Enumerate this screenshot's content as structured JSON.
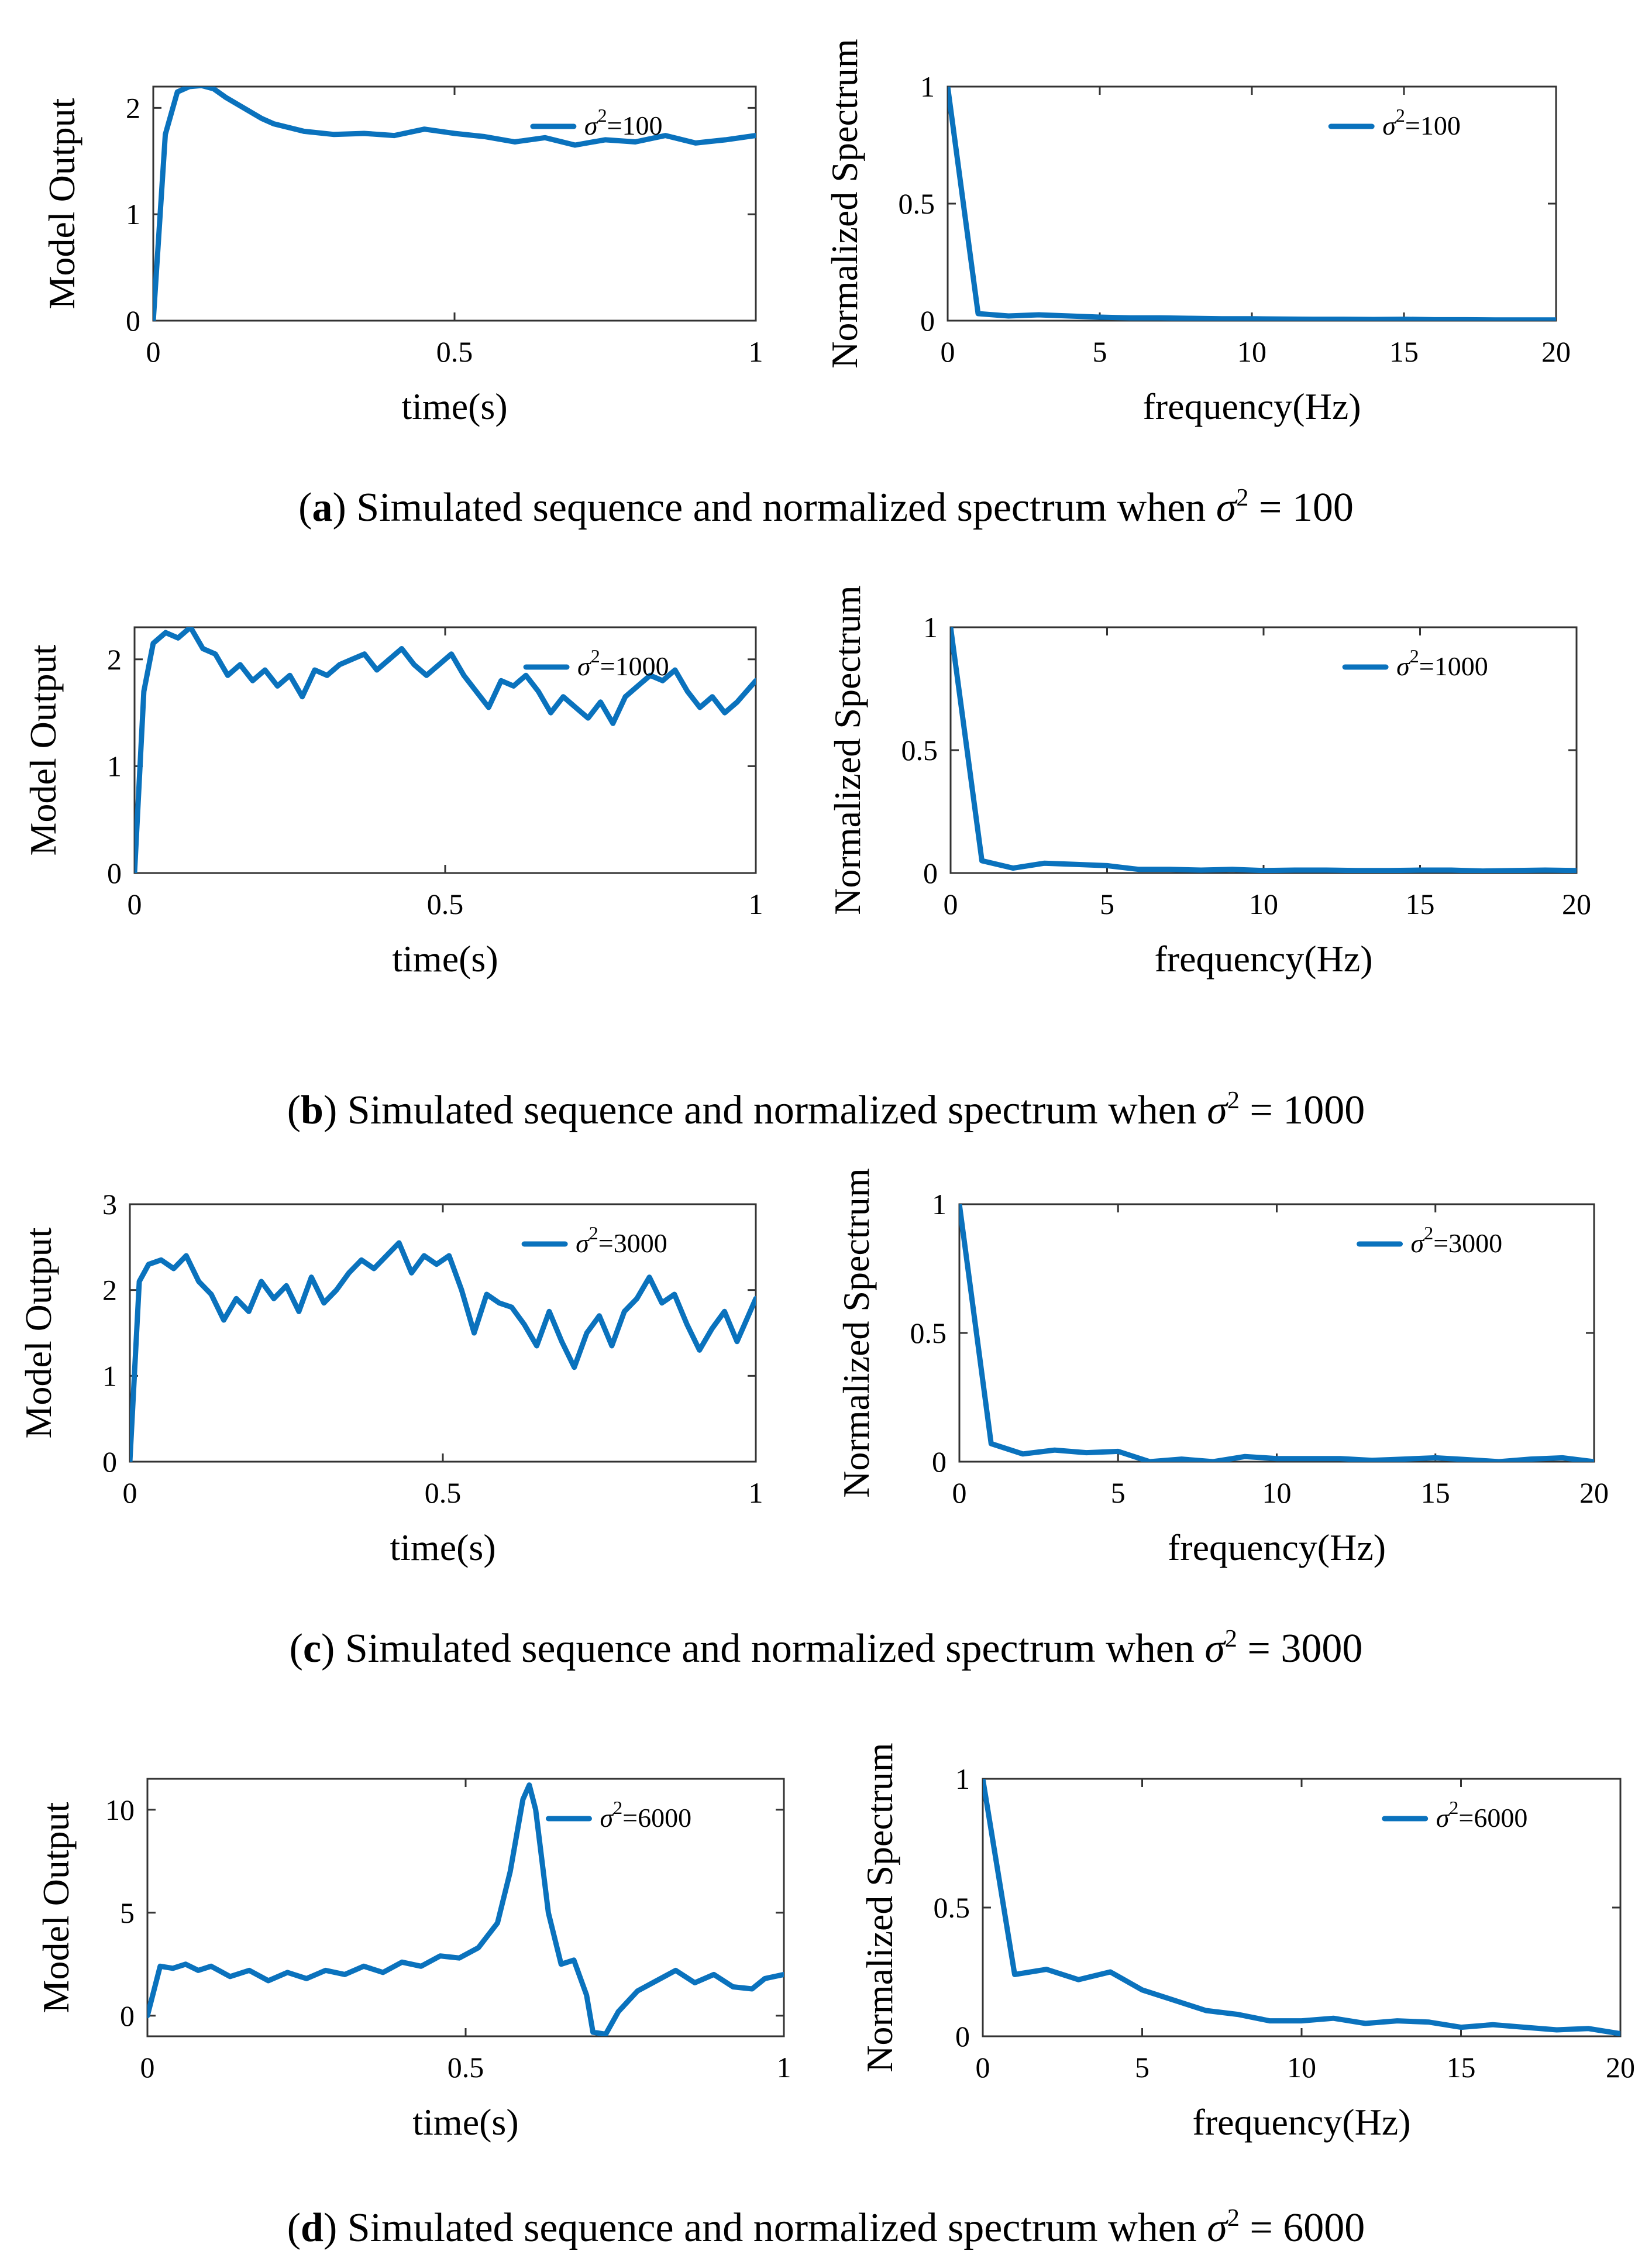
{
  "figure": {
    "panels": [
      {
        "id": "a",
        "caption": {
          "label": "a",
          "text": ") Simulated sequence and normalized spectrum when ",
          "sym": "σ",
          "sup": "2",
          "val": " = 100"
        },
        "time": {
          "ylabel": "Model Output",
          "xlabel": "time(s)",
          "legend": {
            "sym": "σ",
            "sup": "2",
            "val": "=100"
          },
          "xlim": [
            0,
            1
          ],
          "ylim": [
            0,
            2.2
          ],
          "xticks": [
            0,
            0.5,
            1
          ],
          "xtick_labels": [
            "0",
            "0.5",
            "1"
          ],
          "yticks": [
            0,
            1,
            2
          ],
          "ytick_labels": [
            "0",
            "1",
            "2"
          ]
        },
        "spectrum": {
          "ylabel": "Normalized Spectrum",
          "xlabel": "frequency(Hz)",
          "legend": {
            "sym": "σ",
            "sup": "2",
            "val": "=100"
          },
          "xlim": [
            0,
            20
          ],
          "ylim": [
            0,
            1
          ],
          "xticks": [
            0,
            5,
            10,
            15,
            20
          ],
          "xtick_labels": [
            "0",
            "5",
            "10",
            "15",
            "20"
          ],
          "yticks": [
            0,
            0.5,
            1
          ],
          "ytick_labels": [
            "0",
            "0.5",
            "1"
          ]
        }
      },
      {
        "id": "b",
        "caption": {
          "label": "b",
          "text": ") Simulated sequence and normalized spectrum when ",
          "sym": "σ",
          "sup": "2",
          "val": " = 1000"
        },
        "time": {
          "ylabel": "Model Output",
          "xlabel": "time(s)",
          "legend": {
            "sym": "σ",
            "sup": "2",
            "val": "=1000"
          },
          "xlim": [
            0,
            1
          ],
          "ylim": [
            0,
            2.3
          ],
          "xticks": [
            0,
            0.5,
            1
          ],
          "xtick_labels": [
            "0",
            "0.5",
            "1"
          ],
          "yticks": [
            0,
            1,
            2
          ],
          "ytick_labels": [
            "0",
            "1",
            "2"
          ]
        },
        "spectrum": {
          "ylabel": "Normalized Spectrum",
          "xlabel": "frequency(Hz)",
          "legend": {
            "sym": "σ",
            "sup": "2",
            "val": "=1000"
          },
          "xlim": [
            0,
            20
          ],
          "ylim": [
            0,
            1
          ],
          "xticks": [
            0,
            5,
            10,
            15,
            20
          ],
          "xtick_labels": [
            "0",
            "5",
            "10",
            "15",
            "20"
          ],
          "yticks": [
            0,
            0.5,
            1
          ],
          "ytick_labels": [
            "0",
            "0.5",
            "1"
          ]
        }
      },
      {
        "id": "c",
        "caption": {
          "label": "c",
          "text": ") Simulated sequence and normalized spectrum when ",
          "sym": "σ",
          "sup": "2",
          "val": " = 3000"
        },
        "time": {
          "ylabel": "Model Output",
          "xlabel": "time(s)",
          "legend": {
            "sym": "σ",
            "sup": "2",
            "val": "=3000"
          },
          "xlim": [
            0,
            1
          ],
          "ylim": [
            0,
            3
          ],
          "xticks": [
            0,
            0.5,
            1
          ],
          "xtick_labels": [
            "0",
            "0.5",
            "1"
          ],
          "yticks": [
            0,
            1,
            2,
            3
          ],
          "ytick_labels": [
            "0",
            "1",
            "2",
            "3"
          ]
        },
        "spectrum": {
          "ylabel": "Normalized Spectrum",
          "xlabel": "frequency(Hz)",
          "legend": {
            "sym": "σ",
            "sup": "2",
            "val": "=3000"
          },
          "xlim": [
            0,
            20
          ],
          "ylim": [
            0,
            1
          ],
          "xticks": [
            0,
            5,
            10,
            15,
            20
          ],
          "xtick_labels": [
            "0",
            "5",
            "10",
            "15",
            "20"
          ],
          "yticks": [
            0,
            0.5,
            1
          ],
          "ytick_labels": [
            "0",
            "0.5",
            "1"
          ]
        }
      },
      {
        "id": "d",
        "caption": {
          "label": "d",
          "text": ") Simulated sequence and normalized spectrum when ",
          "sym": "σ",
          "sup": "2",
          "val": " = 6000"
        },
        "time": {
          "ylabel": "Model Output",
          "xlabel": "time(s)",
          "legend": {
            "sym": "σ",
            "sup": "2",
            "val": "=6000"
          },
          "xlim": [
            0,
            1
          ],
          "ylim": [
            -1,
            11.5
          ],
          "xticks": [
            0,
            0.5,
            1
          ],
          "xtick_labels": [
            "0",
            "0.5",
            "1"
          ],
          "yticks": [
            0,
            5,
            10
          ],
          "ytick_labels": [
            "0",
            "5",
            "10"
          ]
        },
        "spectrum": {
          "ylabel": "Normalized Spectrum",
          "xlabel": "frequency(Hz)",
          "legend": {
            "sym": "σ",
            "sup": "2",
            "val": "=6000"
          },
          "xlim": [
            0,
            20
          ],
          "ylim": [
            0,
            1
          ],
          "xticks": [
            0,
            5,
            10,
            15,
            20
          ],
          "xtick_labels": [
            "0",
            "5",
            "10",
            "15",
            "20"
          ],
          "yticks": [
            0,
            0.5,
            1
          ],
          "ytick_labels": [
            "0",
            "0.5",
            "1"
          ]
        }
      }
    ]
  },
  "chart_data": [
    {
      "type": "line",
      "panel": "a-time",
      "xlabel": "time(s)",
      "ylabel": "Model Output",
      "xlim": [
        0,
        1
      ],
      "ylim": [
        0,
        2.2
      ],
      "series": [
        {
          "name": "σ²=100",
          "x": [
            0,
            0.02,
            0.04,
            0.06,
            0.08,
            0.1,
            0.12,
            0.15,
            0.18,
            0.2,
            0.25,
            0.3,
            0.35,
            0.4,
            0.45,
            0.5,
            0.55,
            0.6,
            0.65,
            0.7,
            0.75,
            0.8,
            0.85,
            0.9,
            0.95,
            1.0
          ],
          "y": [
            0,
            1.75,
            2.15,
            2.2,
            2.21,
            2.18,
            2.1,
            2.0,
            1.9,
            1.85,
            1.78,
            1.75,
            1.76,
            1.74,
            1.8,
            1.76,
            1.73,
            1.68,
            1.72,
            1.65,
            1.7,
            1.68,
            1.74,
            1.67,
            1.7,
            1.74
          ]
        }
      ]
    },
    {
      "type": "line",
      "panel": "a-spectrum",
      "xlabel": "frequency(Hz)",
      "ylabel": "Normalized Spectrum",
      "xlim": [
        0,
        20
      ],
      "ylim": [
        0,
        1
      ],
      "series": [
        {
          "name": "σ²=100",
          "x": [
            0,
            1,
            2,
            3,
            4,
            5,
            6,
            7,
            8,
            9,
            10,
            11,
            12,
            13,
            14,
            15,
            16,
            17,
            18,
            19,
            20
          ],
          "y": [
            1,
            0.03,
            0.02,
            0.025,
            0.02,
            0.015,
            0.012,
            0.012,
            0.01,
            0.008,
            0.008,
            0.007,
            0.006,
            0.006,
            0.005,
            0.006,
            0.004,
            0.004,
            0.003,
            0.003,
            0.003
          ]
        }
      ]
    },
    {
      "type": "line",
      "panel": "b-time",
      "xlabel": "time(s)",
      "ylabel": "Model Output",
      "xlim": [
        0,
        1
      ],
      "ylim": [
        0,
        2.3
      ],
      "series": [
        {
          "name": "σ²=1000",
          "x": [
            0,
            0.015,
            0.03,
            0.05,
            0.07,
            0.09,
            0.11,
            0.13,
            0.15,
            0.17,
            0.19,
            0.21,
            0.23,
            0.25,
            0.27,
            0.29,
            0.31,
            0.33,
            0.35,
            0.37,
            0.39,
            0.41,
            0.43,
            0.45,
            0.47,
            0.49,
            0.51,
            0.53,
            0.55,
            0.57,
            0.59,
            0.61,
            0.63,
            0.65,
            0.67,
            0.69,
            0.71,
            0.73,
            0.75,
            0.77,
            0.79,
            0.81,
            0.83,
            0.85,
            0.87,
            0.89,
            0.91,
            0.93,
            0.95,
            0.97,
            1.0
          ],
          "y": [
            0,
            1.7,
            2.15,
            2.25,
            2.2,
            2.3,
            2.1,
            2.05,
            1.85,
            1.95,
            1.8,
            1.9,
            1.75,
            1.85,
            1.65,
            1.9,
            1.85,
            1.95,
            2.0,
            2.05,
            1.9,
            2.0,
            2.1,
            1.95,
            1.85,
            1.95,
            2.05,
            1.85,
            1.7,
            1.55,
            1.8,
            1.75,
            1.85,
            1.7,
            1.5,
            1.65,
            1.55,
            1.45,
            1.6,
            1.4,
            1.65,
            1.75,
            1.85,
            1.8,
            1.9,
            1.7,
            1.55,
            1.65,
            1.5,
            1.6,
            1.8
          ]
        }
      ]
    },
    {
      "type": "line",
      "panel": "b-spectrum",
      "xlabel": "frequency(Hz)",
      "ylabel": "Normalized Spectrum",
      "xlim": [
        0,
        20
      ],
      "ylim": [
        0,
        1
      ],
      "series": [
        {
          "name": "σ²=1000",
          "x": [
            0,
            1,
            2,
            3,
            4,
            5,
            6,
            7,
            8,
            9,
            10,
            11,
            12,
            13,
            14,
            15,
            16,
            17,
            18,
            19,
            20
          ],
          "y": [
            1,
            0.05,
            0.02,
            0.04,
            0.035,
            0.03,
            0.015,
            0.015,
            0.012,
            0.015,
            0.01,
            0.012,
            0.012,
            0.01,
            0.01,
            0.012,
            0.012,
            0.008,
            0.01,
            0.012,
            0.01
          ]
        }
      ]
    },
    {
      "type": "line",
      "panel": "c-time",
      "xlabel": "time(s)",
      "ylabel": "Model Output",
      "xlim": [
        0,
        1
      ],
      "ylim": [
        0,
        3
      ],
      "series": [
        {
          "name": "σ²=3000",
          "x": [
            0,
            0.015,
            0.03,
            0.05,
            0.07,
            0.09,
            0.11,
            0.13,
            0.15,
            0.17,
            0.19,
            0.21,
            0.23,
            0.25,
            0.27,
            0.29,
            0.31,
            0.33,
            0.35,
            0.37,
            0.39,
            0.41,
            0.43,
            0.45,
            0.47,
            0.49,
            0.51,
            0.53,
            0.55,
            0.57,
            0.59,
            0.61,
            0.63,
            0.65,
            0.67,
            0.69,
            0.71,
            0.73,
            0.75,
            0.77,
            0.79,
            0.81,
            0.83,
            0.85,
            0.87,
            0.89,
            0.91,
            0.93,
            0.95,
            0.97,
            1.0
          ],
          "y": [
            0,
            2.1,
            2.3,
            2.35,
            2.25,
            2.4,
            2.1,
            1.95,
            1.65,
            1.9,
            1.75,
            2.1,
            1.9,
            2.05,
            1.75,
            2.15,
            1.85,
            2.0,
            2.2,
            2.35,
            2.25,
            2.4,
            2.55,
            2.2,
            2.4,
            2.3,
            2.4,
            2.0,
            1.5,
            1.95,
            1.85,
            1.8,
            1.6,
            1.35,
            1.75,
            1.4,
            1.1,
            1.5,
            1.7,
            1.35,
            1.75,
            1.9,
            2.15,
            1.85,
            1.95,
            1.6,
            1.3,
            1.55,
            1.75,
            1.4,
            1.9
          ]
        }
      ]
    },
    {
      "type": "line",
      "panel": "c-spectrum",
      "xlabel": "frequency(Hz)",
      "ylabel": "Normalized Spectrum",
      "xlim": [
        0,
        20
      ],
      "ylim": [
        0,
        1
      ],
      "series": [
        {
          "name": "σ²=3000",
          "x": [
            0,
            1,
            2,
            3,
            4,
            5,
            6,
            7,
            8,
            9,
            10,
            11,
            12,
            13,
            14,
            15,
            16,
            17,
            18,
            19,
            20
          ],
          "y": [
            1,
            0.07,
            0.03,
            0.045,
            0.035,
            0.04,
            0.0,
            0.01,
            0.0,
            0.02,
            0.012,
            0.012,
            0.012,
            0.005,
            0.01,
            0.015,
            0.008,
            0.0,
            0.01,
            0.015,
            0.0
          ]
        }
      ]
    },
    {
      "type": "line",
      "panel": "d-time",
      "xlabel": "time(s)",
      "ylabel": "Model Output",
      "xlim": [
        0,
        1
      ],
      "ylim": [
        -1,
        11.5
      ],
      "series": [
        {
          "name": "σ²=6000",
          "x": [
            0,
            0.02,
            0.04,
            0.06,
            0.08,
            0.1,
            0.13,
            0.16,
            0.19,
            0.22,
            0.25,
            0.28,
            0.31,
            0.34,
            0.37,
            0.4,
            0.43,
            0.46,
            0.49,
            0.52,
            0.55,
            0.57,
            0.59,
            0.6,
            0.61,
            0.63,
            0.65,
            0.67,
            0.69,
            0.7,
            0.72,
            0.74,
            0.77,
            0.8,
            0.83,
            0.86,
            0.89,
            0.92,
            0.95,
            0.97,
            1.0
          ],
          "y": [
            0,
            2.4,
            2.3,
            2.5,
            2.2,
            2.4,
            1.9,
            2.2,
            1.7,
            2.1,
            1.8,
            2.2,
            2.0,
            2.4,
            2.1,
            2.6,
            2.4,
            2.9,
            2.8,
            3.3,
            4.5,
            7.0,
            10.5,
            11.2,
            10.0,
            5.0,
            2.5,
            2.7,
            1.0,
            -0.8,
            -0.9,
            0.2,
            1.2,
            1.7,
            2.2,
            1.6,
            2.0,
            1.4,
            1.3,
            1.8,
            2.0
          ]
        }
      ]
    },
    {
      "type": "line",
      "panel": "d-spectrum",
      "xlabel": "frequency(Hz)",
      "ylabel": "Normalized Spectrum",
      "xlim": [
        0,
        20
      ],
      "ylim": [
        0,
        1
      ],
      "series": [
        {
          "name": "σ²=6000",
          "x": [
            0,
            1,
            2,
            3,
            4,
            5,
            6,
            7,
            8,
            9,
            10,
            11,
            12,
            13,
            14,
            15,
            16,
            17,
            18,
            19,
            20
          ],
          "y": [
            1,
            0.24,
            0.26,
            0.22,
            0.25,
            0.18,
            0.14,
            0.1,
            0.085,
            0.06,
            0.06,
            0.07,
            0.05,
            0.06,
            0.055,
            0.035,
            0.045,
            0.035,
            0.025,
            0.03,
            0.01
          ]
        }
      ]
    }
  ]
}
